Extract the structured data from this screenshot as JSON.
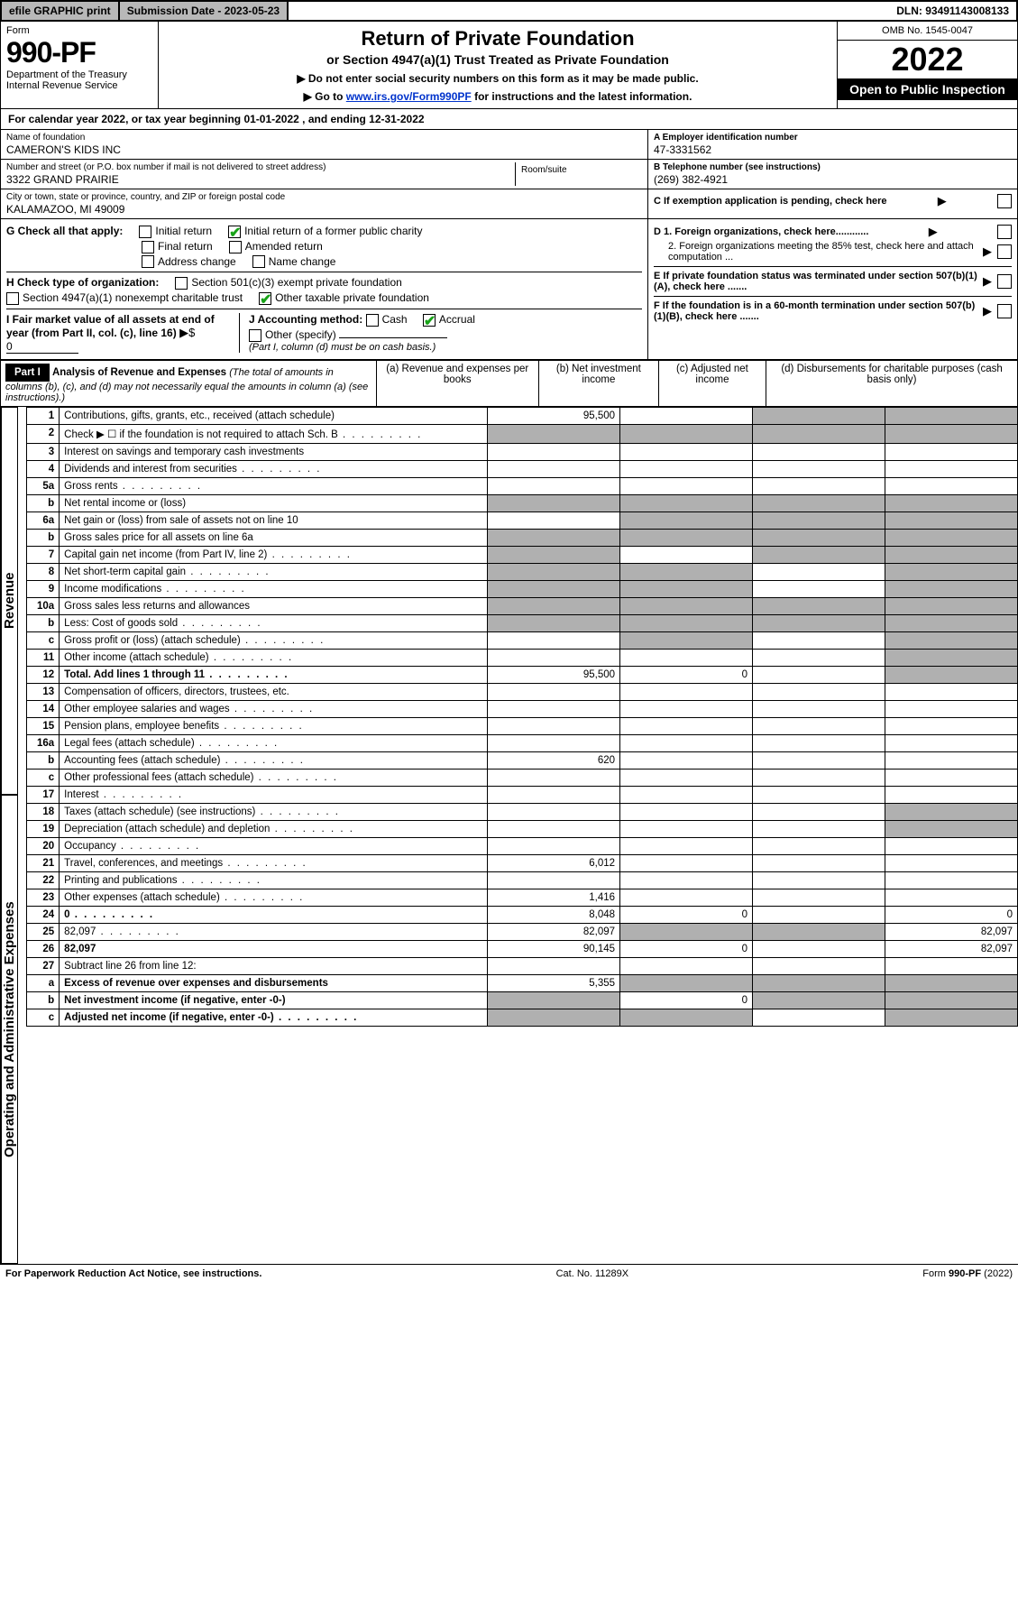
{
  "top": {
    "efile": "efile GRAPHIC print",
    "subdate_lbl": "Submission Date - 2023-05-23",
    "dln": "DLN: 93491143008133"
  },
  "header": {
    "form_word": "Form",
    "form_no": "990-PF",
    "dept": "Department of the Treasury",
    "irs": "Internal Revenue Service",
    "title1": "Return of Private Foundation",
    "title2": "or Section 4947(a)(1) Trust Treated as Private Foundation",
    "title3a": "▶ Do not enter social security numbers on this form as it may be made public.",
    "title3b_pre": "▶ Go to ",
    "title3b_link": "www.irs.gov/Form990PF",
    "title3b_post": " for instructions and the latest information.",
    "omb": "OMB No. 1545-0047",
    "year": "2022",
    "open": "Open to Public Inspection"
  },
  "calyear": "For calendar year 2022, or tax year beginning 01-01-2022               , and ending 12-31-2022",
  "id": {
    "name_lbl": "Name of foundation",
    "name": "CAMERON'S KIDS INC",
    "street_lbl": "Number and street (or P.O. box number if mail is not delivered to street address)",
    "street": "3322 GRAND PRAIRIE",
    "room_lbl": "Room/suite",
    "city_lbl": "City or town, state or province, country, and ZIP or foreign postal code",
    "city": "KALAMAZOO, MI  49009",
    "a_lbl": "A Employer identification number",
    "a_val": "47-3331562",
    "b_lbl": "B Telephone number (see instructions)",
    "b_val": "(269) 382-4921",
    "c_lbl": "C If exemption application is pending, check here",
    "d1_lbl": "D 1. Foreign organizations, check here............",
    "d2_lbl": "2. Foreign organizations meeting the 85% test, check here and attach computation ...",
    "e_lbl": "E  If private foundation status was terminated under section 507(b)(1)(A), check here .......",
    "f_lbl": "F  If the foundation is in a 60-month termination under section 507(b)(1)(B), check here .......",
    "g_lbl": "G Check all that apply:",
    "g_opts": [
      "Initial return",
      "Final return",
      "Address change",
      "Initial return of a former public charity",
      "Amended return",
      "Name change"
    ],
    "h_lbl": "H Check type of organization:",
    "h_opts": [
      "Section 501(c)(3) exempt private foundation",
      "Section 4947(a)(1) nonexempt charitable trust",
      "Other taxable private foundation"
    ],
    "i_lbl": "I Fair market value of all assets at end of year (from Part II, col. (c), line 16)",
    "i_val": "0",
    "j_lbl": "J Accounting method:",
    "j_opts": [
      "Cash",
      "Accrual",
      "Other (specify)"
    ],
    "j_note": "(Part I, column (d) must be on cash basis.)"
  },
  "part1": {
    "hdr": "Part I",
    "title": "Analysis of Revenue and Expenses",
    "sub": "(The total of amounts in columns (b), (c), and (d) may not necessarily equal the amounts in column (a) (see instructions).)",
    "col_a": "(a)  Revenue and expenses per books",
    "col_b": "(b)  Net investment income",
    "col_c": "(c)  Adjusted net income",
    "col_d": "(d)  Disbursements for charitable purposes (cash basis only)",
    "side_rev": "Revenue",
    "side_exp": "Operating and Administrative Expenses",
    "rows": [
      {
        "n": "1",
        "d": "Contributions, gifts, grants, etc., received (attach schedule)",
        "a": "95,500",
        "shade_b": false,
        "shade_c": true,
        "shade_d": true
      },
      {
        "n": "2",
        "d": "Check ▶ ☐ if the foundation is not required to attach Sch. B",
        "dots": true,
        "shade_all": true
      },
      {
        "n": "3",
        "d": "Interest on savings and temporary cash investments"
      },
      {
        "n": "4",
        "d": "Dividends and interest from securities",
        "dots": true
      },
      {
        "n": "5a",
        "d": "Gross rents",
        "dots": true
      },
      {
        "n": "b",
        "d": "Net rental income or (loss)",
        "shade_all": true,
        "inline_box": true
      },
      {
        "n": "6a",
        "d": "Net gain or (loss) from sale of assets not on line 10",
        "shade_b": true,
        "shade_c": true,
        "shade_d": true
      },
      {
        "n": "b",
        "d": "Gross sales price for all assets on line 6a",
        "shade_all": true,
        "inline_box": true
      },
      {
        "n": "7",
        "d": "Capital gain net income (from Part IV, line 2)",
        "dots": true,
        "shade_a": true,
        "shade_c": true,
        "shade_d": true
      },
      {
        "n": "8",
        "d": "Net short-term capital gain",
        "dots": true,
        "shade_a": true,
        "shade_b": true,
        "shade_d": true
      },
      {
        "n": "9",
        "d": "Income modifications",
        "dots": true,
        "shade_a": true,
        "shade_b": true,
        "shade_d": true
      },
      {
        "n": "10a",
        "d": "Gross sales less returns and allowances",
        "shade_all": true,
        "inline_box": true
      },
      {
        "n": "b",
        "d": "Less: Cost of goods sold",
        "dots": true,
        "shade_all": true,
        "inline_box": true
      },
      {
        "n": "c",
        "d": "Gross profit or (loss) (attach schedule)",
        "dots": true,
        "shade_b": true,
        "shade_d": true
      },
      {
        "n": "11",
        "d": "Other income (attach schedule)",
        "dots": true,
        "shade_d": true
      },
      {
        "n": "12",
        "d": "Total. Add lines 1 through 11",
        "dots": true,
        "bold": true,
        "a": "95,500",
        "b": "0",
        "shade_d": true
      },
      {
        "n": "13",
        "d": "Compensation of officers, directors, trustees, etc."
      },
      {
        "n": "14",
        "d": "Other employee salaries and wages",
        "dots": true
      },
      {
        "n": "15",
        "d": "Pension plans, employee benefits",
        "dots": true
      },
      {
        "n": "16a",
        "d": "Legal fees (attach schedule)",
        "dots": true
      },
      {
        "n": "b",
        "d": "Accounting fees (attach schedule)",
        "dots": true,
        "a": "620"
      },
      {
        "n": "c",
        "d": "Other professional fees (attach schedule)",
        "dots": true
      },
      {
        "n": "17",
        "d": "Interest",
        "dots": true
      },
      {
        "n": "18",
        "d": "Taxes (attach schedule) (see instructions)",
        "dots": true,
        "shade_d": true
      },
      {
        "n": "19",
        "d": "Depreciation (attach schedule) and depletion",
        "dots": true,
        "shade_d": true
      },
      {
        "n": "20",
        "d": "Occupancy",
        "dots": true
      },
      {
        "n": "21",
        "d": "Travel, conferences, and meetings",
        "dots": true,
        "a": "6,012"
      },
      {
        "n": "22",
        "d": "Printing and publications",
        "dots": true
      },
      {
        "n": "23",
        "d": "Other expenses (attach schedule)",
        "dots": true,
        "a": "1,416"
      },
      {
        "n": "24",
        "d": "0",
        "dots": true,
        "bold": true,
        "a": "8,048",
        "b": "0"
      },
      {
        "n": "25",
        "d": "82,097",
        "dots": true,
        "a": "82,097",
        "shade_b": true,
        "shade_c": true
      },
      {
        "n": "26",
        "d": "82,097",
        "bold": true,
        "a": "90,145",
        "b": "0"
      },
      {
        "n": "27",
        "d": "Subtract line 26 from line 12:",
        "bold": false,
        "shade_all_after": true
      },
      {
        "n": "a",
        "d": "Excess of revenue over expenses and disbursements",
        "bold": true,
        "a": "5,355",
        "shade_b": true,
        "shade_c": true,
        "shade_d": true
      },
      {
        "n": "b",
        "d": "Net investment income (if negative, enter -0-)",
        "bold": true,
        "shade_a": true,
        "b": "0",
        "shade_c": true,
        "shade_d": true
      },
      {
        "n": "c",
        "d": "Adjusted net income (if negative, enter -0-)",
        "dots": true,
        "bold": true,
        "shade_a": true,
        "shade_b": true,
        "shade_d": true
      }
    ]
  },
  "footer": {
    "left": "For Paperwork Reduction Act Notice, see instructions.",
    "mid": "Cat. No. 11289X",
    "right": "Form 990-PF (2022)"
  }
}
